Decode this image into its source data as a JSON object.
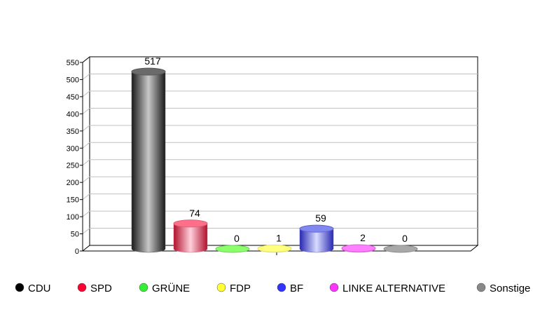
{
  "chart_data": {
    "type": "bar",
    "style": "3d-cylinder",
    "categories": [
      "CDU",
      "SPD",
      "GRÜNE",
      "FDP",
      "BF",
      "LINKE ALTERNATIVE",
      "Sonstige"
    ],
    "values": [
      517,
      74,
      0,
      1,
      59,
      2,
      0
    ],
    "value_labels": [
      "517",
      "74",
      "0",
      "1",
      "59",
      "2",
      "0"
    ],
    "colors": [
      "#000000",
      "#ff0033",
      "#33ee33",
      "#ffff33",
      "#3333ff",
      "#ff33ff",
      "#888888"
    ],
    "bar_gradients": [
      [
        "#1a1a1a",
        "#c8c8c8",
        "#5a5a5a",
        "#6a6a6a"
      ],
      [
        "#b0102c",
        "#ffd0dc",
        "#e0607c",
        "#ff6f88"
      ],
      [
        "#50c040",
        "#a0ff80",
        "#70d060",
        "#8cff6a"
      ],
      [
        "#d0d040",
        "#ffffa0",
        "#e0e060",
        "#ffff80"
      ],
      [
        "#2828b0",
        "#d8dcff",
        "#6060d0",
        "#8088f0"
      ],
      [
        "#c040c0",
        "#ffa0ff",
        "#e060e0",
        "#ff80ff"
      ],
      [
        "#808080",
        "#c8c8c8",
        "#909090",
        "#a8a8a8"
      ]
    ],
    "ylim": [
      0,
      550
    ],
    "yticks": [
      "0",
      "50",
      "100",
      "150",
      "200",
      "250",
      "300",
      "350",
      "400",
      "450",
      "500",
      "550"
    ],
    "grid": true,
    "legend_placement": "bottom",
    "title": "",
    "xlabel": "",
    "ylabel": ""
  }
}
